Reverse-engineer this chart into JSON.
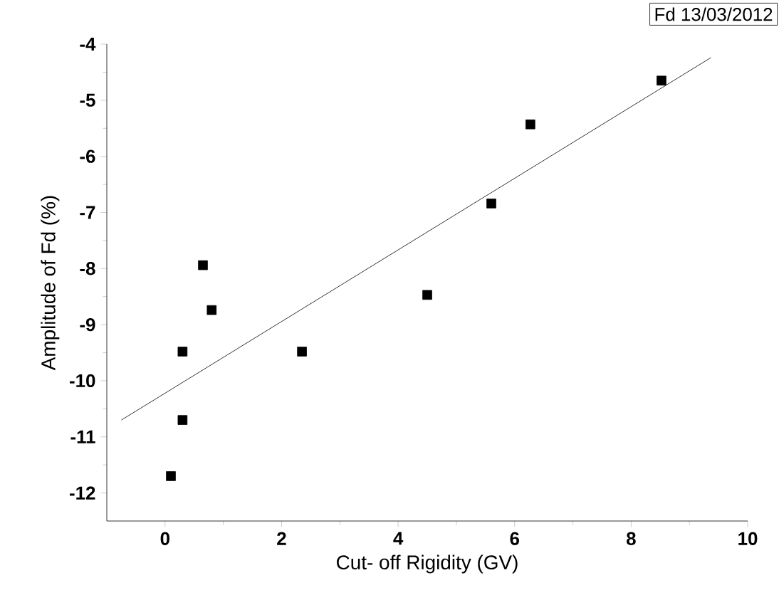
{
  "chart_data": {
    "type": "scatter",
    "xlabel": "Cut- off Rigidity (GV)",
    "ylabel": "Amplitude of Fd (%)",
    "annotations": [
      "Fd 13/03/2012"
    ],
    "marker": "square",
    "grid": false,
    "xlim": [
      -1,
      10
    ],
    "ylim": [
      -12.5,
      -4
    ],
    "xticks": [
      0,
      2,
      4,
      6,
      8,
      10
    ],
    "yticks": [
      -12,
      -11,
      -10,
      -9,
      -8,
      -7,
      -6,
      -5,
      -4
    ],
    "series": [
      {
        "color": "#000000",
        "x": [
          0.1,
          0.3,
          0.3,
          0.65,
          0.8,
          2.35,
          4.5,
          5.6,
          6.27,
          8.52
        ],
        "values": [
          -11.7,
          -10.7,
          -9.48,
          -7.94,
          -8.74,
          -9.48,
          -8.47,
          -6.84,
          -5.43,
          -4.65
        ]
      },
      {
        "type": "line",
        "color": "#000000",
        "marker": "none",
        "line_style": "solid",
        "x": [
          -0.75,
          9.37
        ],
        "values": [
          -10.7,
          -4.24
        ]
      }
    ]
  }
}
